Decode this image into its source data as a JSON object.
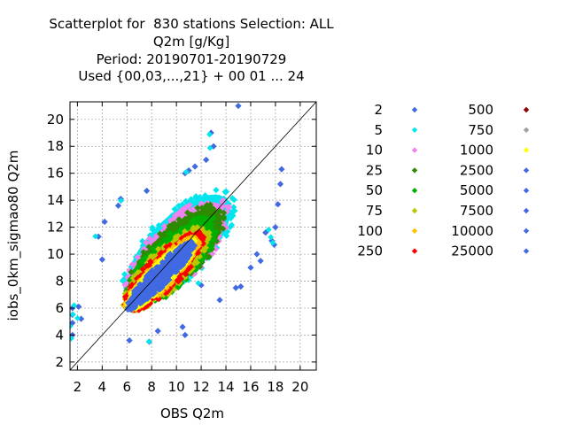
{
  "chart_data": {
    "type": "scatter",
    "title_lines": [
      "Scatterplot for  830 stations Selection: ALL",
      "Q2m [g/Kg]",
      "Period: 20190701-20190729",
      "Used {00,03,...,21} + 00 01 ... 24"
    ],
    "xlabel": "OBS Q2m",
    "ylabel": "iobs_0km_sigmao80 Q2m",
    "xlim": [
      1.4,
      21.3
    ],
    "ylim": [
      1.4,
      21.3
    ],
    "xticks": [
      "2",
      "4",
      "6",
      "8",
      "10",
      "12",
      "14",
      "16",
      "18",
      "20"
    ],
    "yticks": [
      "2",
      "4",
      "6",
      "8",
      "10",
      "12",
      "14",
      "16",
      "18",
      "20"
    ],
    "grid": true,
    "diagonal_line": true,
    "legend_position": "right",
    "legend": [
      {
        "label": "2",
        "color": "#4169e1"
      },
      {
        "label": "5",
        "color": "#00e5ee"
      },
      {
        "label": "10",
        "color": "#ee82ee"
      },
      {
        "label": "25",
        "color": "#2e8b00"
      },
      {
        "label": "50",
        "color": "#00b000"
      },
      {
        "label": "75",
        "color": "#b8c800"
      },
      {
        "label": "100",
        "color": "#ffc000"
      },
      {
        "label": "250",
        "color": "#ff0000"
      },
      {
        "label": "500",
        "color": "#8b0000"
      },
      {
        "label": "750",
        "color": "#a0a0a0"
      },
      {
        "label": "1000",
        "color": "#ffff00"
      },
      {
        "label": "2500",
        "color": "#4169e1"
      },
      {
        "label": "5000",
        "color": "#4169e1"
      },
      {
        "label": "7500",
        "color": "#4169e1"
      },
      {
        "label": "10000",
        "color": "#4169e1"
      },
      {
        "label": "25000",
        "color": "#4169e1"
      }
    ],
    "density_bands": [
      {
        "class": "5",
        "color": "#00e5ee",
        "center": [
          10.2,
          10.6
        ],
        "major_sd": 4.0,
        "minor_sd": 2.05
      },
      {
        "class": "10",
        "color": "#ee82ee",
        "center": [
          10.1,
          10.3
        ],
        "major_sd": 3.75,
        "minor_sd": 1.85
      },
      {
        "class": "25",
        "color": "#2e8b00",
        "center": [
          10.0,
          10.0
        ],
        "major_sd": 3.55,
        "minor_sd": 1.7
      },
      {
        "class": "50",
        "color": "#00b000",
        "center": [
          9.6,
          9.4
        ],
        "major_sd": 3.35,
        "minor_sd": 1.5
      },
      {
        "class": "75",
        "color": "#b8c800",
        "center": [
          9.2,
          8.9
        ],
        "major_sd": 3.15,
        "minor_sd": 1.3
      },
      {
        "class": "250",
        "color": "#ff0000",
        "center": [
          9.0,
          8.7
        ],
        "major_sd": 2.95,
        "minor_sd": 1.12
      },
      {
        "class": "100",
        "color": "#ffc000",
        "center": [
          8.85,
          8.55
        ],
        "major_sd": 2.8,
        "minor_sd": 0.85
      },
      {
        "class": "1000",
        "color": "#ffff00",
        "center": [
          8.75,
          8.45
        ],
        "major_sd": 2.7,
        "minor_sd": 0.72
      },
      {
        "class": "2500",
        "color": "#4169e1",
        "center": [
          8.7,
          8.4
        ],
        "major_sd": 2.6,
        "minor_sd": 0.62
      }
    ],
    "outliers": [
      [
        1.6,
        6.0
      ],
      [
        1.6,
        5.5
      ],
      [
        1.6,
        4.9
      ],
      [
        2.1,
        6.1
      ],
      [
        1.6,
        4.0
      ],
      [
        2.3,
        5.2
      ],
      [
        15.0,
        21.0
      ],
      [
        13.0,
        18.0
      ],
      [
        12.8,
        19.0
      ],
      [
        18.5,
        16.3
      ],
      [
        18.4,
        15.2
      ],
      [
        18.0,
        12.0
      ],
      [
        17.9,
        10.7
      ],
      [
        17.7,
        11.0
      ],
      [
        18.2,
        13.7
      ],
      [
        16.0,
        9.0
      ],
      [
        14.8,
        7.5
      ],
      [
        15.2,
        7.6
      ],
      [
        16.5,
        10.0
      ],
      [
        17.2,
        11.6
      ],
      [
        3.7,
        11.3
      ],
      [
        4.2,
        12.4
      ],
      [
        4.0,
        9.6
      ],
      [
        5.5,
        14.1
      ],
      [
        5.3,
        13.6
      ],
      [
        7.6,
        14.7
      ],
      [
        11.0,
        16.2
      ],
      [
        11.5,
        16.5
      ],
      [
        10.7,
        16.0
      ],
      [
        12.4,
        17.0
      ],
      [
        7.8,
        3.5
      ],
      [
        8.5,
        4.3
      ],
      [
        6.2,
        3.6
      ],
      [
        10.5,
        4.6
      ],
      [
        10.7,
        4.0
      ],
      [
        12.0,
        7.7
      ],
      [
        16.8,
        9.5
      ],
      [
        13.5,
        6.6
      ]
    ]
  }
}
